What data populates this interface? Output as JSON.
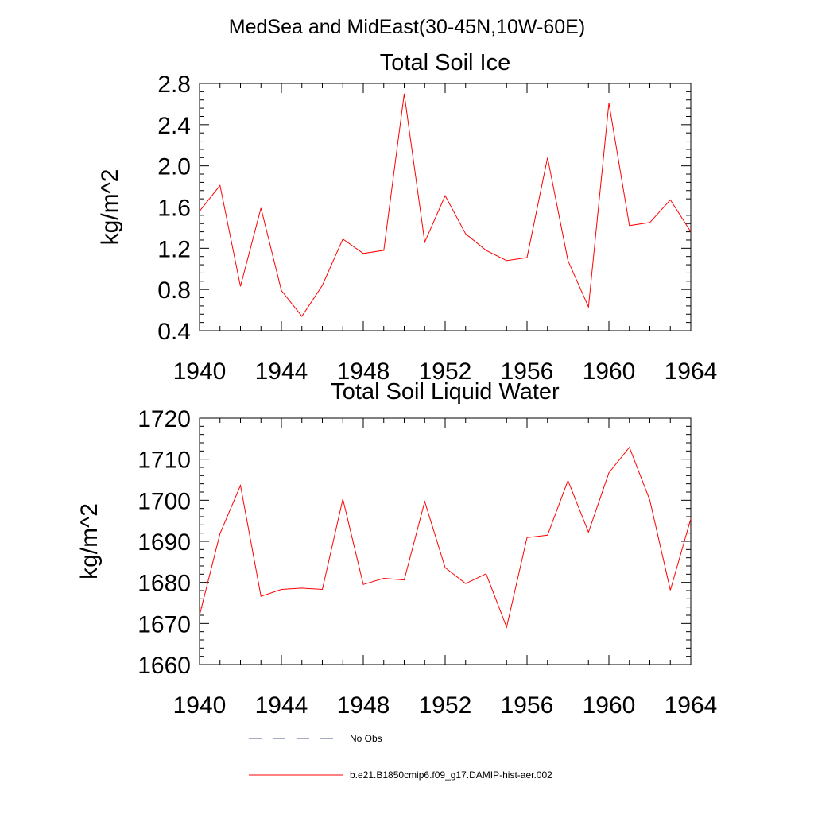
{
  "figure_title": "MedSea and MidEast(30-45N,10W-60E)",
  "colors": {
    "series": "#ff0000",
    "no_obs": "#4b5a8c"
  },
  "legend": {
    "placement": "bottom",
    "entries": [
      {
        "label": "No Obs",
        "style": "dashed",
        "color": "#4b5a8c"
      },
      {
        "label": "b.e21.B1850cmip6.f09_g17.DAMIP-hist-aer.002",
        "style": "solid",
        "color": "#ff0000"
      }
    ]
  },
  "chart_data": [
    {
      "type": "line",
      "title": "Total Soil Ice",
      "xlabel": "",
      "ylabel": "kg/m^2",
      "xlim": [
        1940,
        1964
      ],
      "ylim": [
        0.4,
        2.8
      ],
      "x_ticks": [
        "1940",
        "1944",
        "1948",
        "1952",
        "1956",
        "1960",
        "1964"
      ],
      "y_ticks": [
        "0.4",
        "0.8",
        "1.2",
        "1.6",
        "2.0",
        "2.4",
        "2.8"
      ],
      "grid": false,
      "series": [
        {
          "color": "#ff0000",
          "x": [
            1940,
            1941,
            1942,
            1943,
            1944,
            1945,
            1946,
            1947,
            1948,
            1949,
            1950,
            1951,
            1952,
            1953,
            1954,
            1955,
            1956,
            1957,
            1958,
            1959,
            1960,
            1961,
            1962,
            1963,
            1964
          ],
          "y": [
            1.56,
            1.81,
            0.83,
            1.59,
            0.79,
            0.54,
            0.84,
            1.29,
            1.15,
            1.18,
            2.7,
            1.26,
            1.71,
            1.34,
            1.18,
            1.08,
            1.11,
            2.08,
            1.08,
            0.63,
            2.61,
            1.42,
            1.45,
            1.67,
            1.36
          ]
        }
      ]
    },
    {
      "type": "line",
      "title": "Total Soil Liquid Water",
      "xlabel": "",
      "ylabel": "kg/m^2",
      "xlim": [
        1940,
        1964
      ],
      "ylim": [
        1660,
        1720
      ],
      "x_ticks": [
        "1940",
        "1944",
        "1948",
        "1952",
        "1956",
        "1960",
        "1964"
      ],
      "y_ticks": [
        "1660",
        "1670",
        "1680",
        "1690",
        "1700",
        "1710",
        "1720"
      ],
      "grid": false,
      "series": [
        {
          "color": "#ff0000",
          "x": [
            1940,
            1941,
            1942,
            1943,
            1944,
            1945,
            1946,
            1947,
            1948,
            1949,
            1950,
            1951,
            1952,
            1953,
            1954,
            1955,
            1956,
            1957,
            1958,
            1959,
            1960,
            1961,
            1962,
            1963,
            1964
          ],
          "y": [
            1672.0,
            1691.9,
            1703.6,
            1676.6,
            1678.3,
            1678.6,
            1678.3,
            1700.3,
            1679.5,
            1681.0,
            1680.6,
            1699.7,
            1683.6,
            1679.7,
            1682.1,
            1669.1,
            1690.9,
            1691.5,
            1704.8,
            1692.2,
            1706.7,
            1712.9,
            1700.0,
            1678.1,
            1695.5
          ]
        }
      ]
    }
  ]
}
